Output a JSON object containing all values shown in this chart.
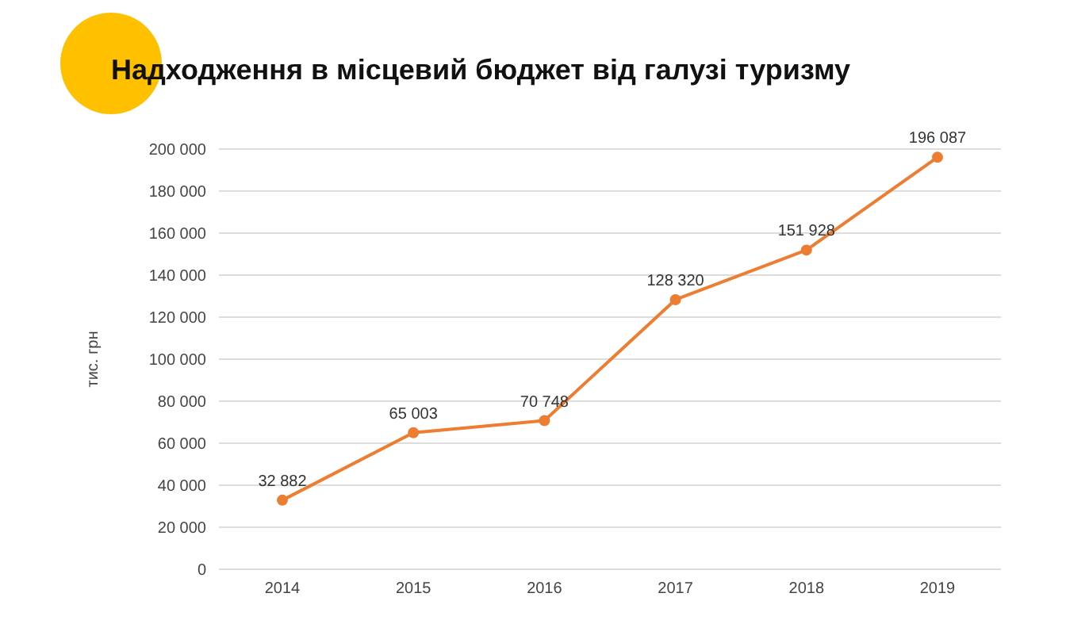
{
  "chart_data": {
    "type": "line",
    "title": "Надходження в місцевий бюджет від галузі туризму",
    "ylabel": "тис. грн",
    "categories": [
      "2014",
      "2015",
      "2016",
      "2017",
      "2018",
      "2019"
    ],
    "series": [
      {
        "color": "#ed7d31",
        "values": [
          32882,
          65003,
          70748,
          128320,
          151928,
          196087
        ],
        "value_labels": [
          "32 882",
          "65 003",
          "70 748",
          "128 320",
          "151 928",
          "196 087"
        ]
      }
    ],
    "ylim": [
      0,
      200000
    ],
    "yticks": [
      {
        "value": 0,
        "label": "0"
      },
      {
        "value": 20000,
        "label": "20 000"
      },
      {
        "value": 40000,
        "label": "40 000"
      },
      {
        "value": 60000,
        "label": "60 000"
      },
      {
        "value": 80000,
        "label": "80 000"
      },
      {
        "value": 100000,
        "label": "100 000"
      },
      {
        "value": 120000,
        "label": "120 000"
      },
      {
        "value": 140000,
        "label": "140 000"
      },
      {
        "value": 160000,
        "label": "160 000"
      },
      {
        "value": 180000,
        "label": "180 000"
      },
      {
        "value": 200000,
        "label": "200 000"
      }
    ],
    "grid": "y",
    "marker": "circle",
    "line_style": "solid"
  }
}
